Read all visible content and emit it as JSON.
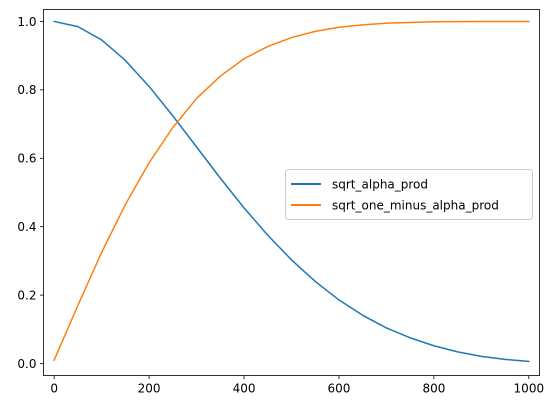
{
  "chart_data": {
    "type": "line",
    "title": "",
    "xlabel": "",
    "ylabel": "",
    "xlim": [
      -22.5,
      1022.5
    ],
    "ylim": [
      -0.035,
      1.035
    ],
    "xticks": [
      0,
      200,
      400,
      600,
      800,
      1000
    ],
    "xtick_labels": [
      "0",
      "200",
      "400",
      "600",
      "800",
      "1000"
    ],
    "yticks": [
      0.0,
      0.2,
      0.4,
      0.6,
      0.8,
      1.0
    ],
    "ytick_labels": [
      "0.0",
      "0.2",
      "0.4",
      "0.6",
      "0.8",
      "1.0"
    ],
    "grid": false,
    "legend": "center-right",
    "x": [
      0,
      50,
      100,
      150,
      200,
      250,
      300,
      350,
      400,
      450,
      500,
      550,
      600,
      650,
      700,
      750,
      800,
      850,
      900,
      950,
      1000
    ],
    "series": [
      {
        "name": "sqrt_alpha_prod",
        "color": "#1f77b4",
        "values": [
          1.0,
          0.985,
          0.946,
          0.886,
          0.81,
          0.724,
          0.633,
          0.542,
          0.455,
          0.375,
          0.303,
          0.24,
          0.186,
          0.141,
          0.104,
          0.075,
          0.052,
          0.034,
          0.021,
          0.012,
          0.006
        ]
      },
      {
        "name": "sqrt_one_minus_alpha_prod",
        "color": "#ff7f0e",
        "values": [
          0.01,
          0.17,
          0.325,
          0.465,
          0.587,
          0.69,
          0.775,
          0.84,
          0.891,
          0.927,
          0.953,
          0.971,
          0.983,
          0.99,
          0.995,
          0.997,
          0.999,
          0.9995,
          0.9998,
          0.9999,
          1.0
        ]
      }
    ]
  }
}
